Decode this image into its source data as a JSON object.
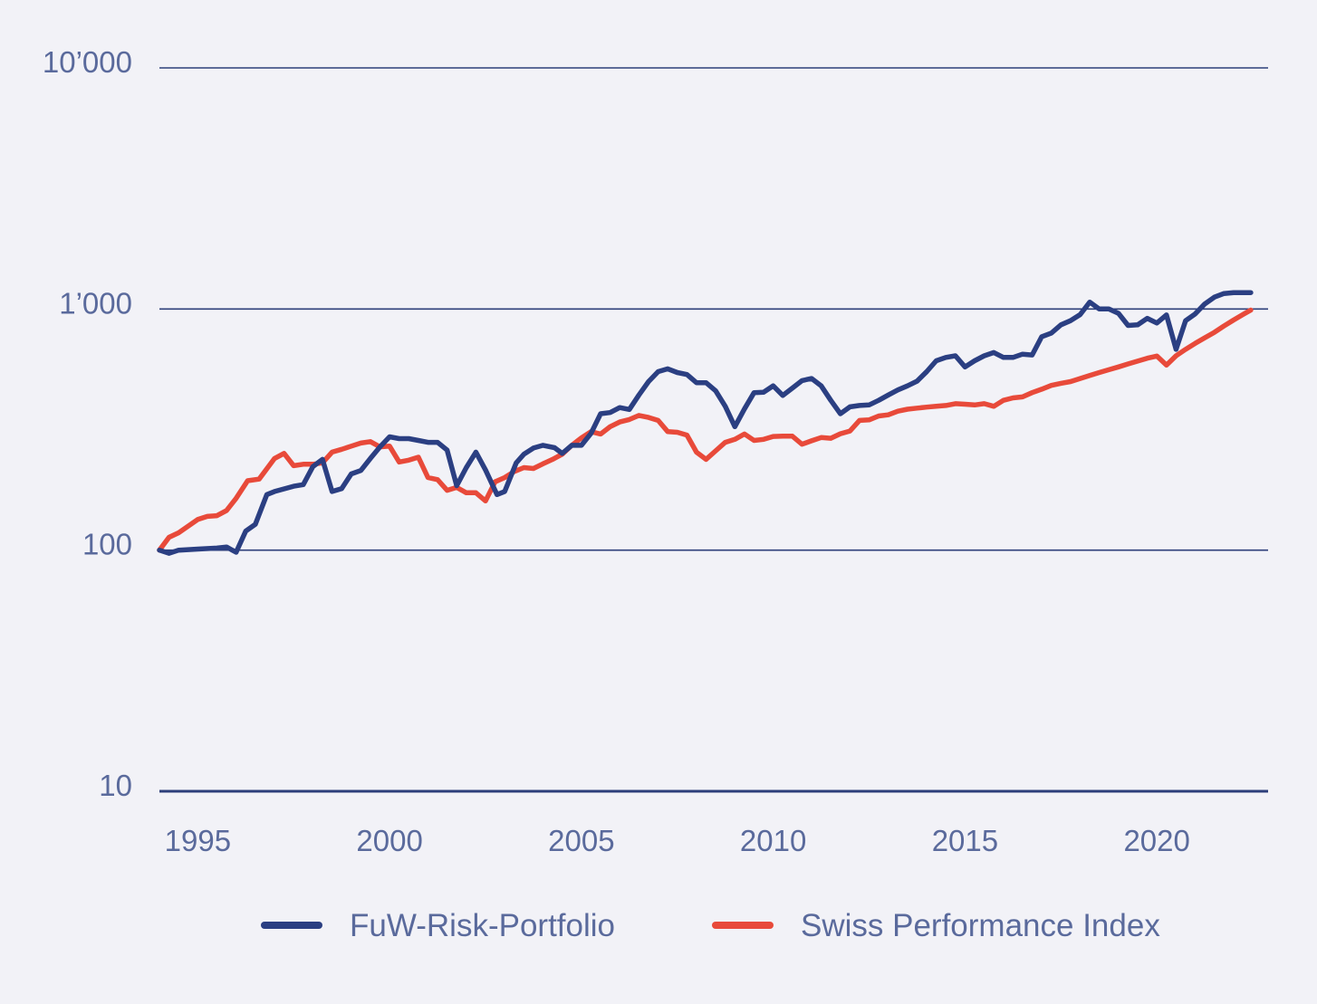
{
  "colors": {
    "background": "#f2f2f7",
    "grid": "#2d3f7a",
    "text": "#5a6a9c",
    "risk_portfolio": "#2b3f82",
    "spi": "#e84a3a"
  },
  "chart_data": {
    "type": "line",
    "title": "",
    "xlabel": "",
    "ylabel": "",
    "y_scale": "log",
    "xlim": [
      1994,
      2022.9
    ],
    "ylim": [
      10,
      10000
    ],
    "x_ticks": [
      1995,
      2000,
      2005,
      2010,
      2015,
      2020
    ],
    "x_tick_labels": [
      "1995",
      "2000",
      "2005",
      "2010",
      "2015",
      "2020"
    ],
    "y_ticks": [
      10,
      100,
      1000,
      10000
    ],
    "y_tick_labels": [
      "10",
      "100",
      "1’000",
      "10’000"
    ],
    "grid": "horizontal",
    "legend_position": "bottom",
    "legend": [
      "FuW-Risk-Portfolio",
      "Swiss Performance Index"
    ],
    "series": [
      {
        "name": "FuW-Risk-Portfolio",
        "color": "#2b3f82",
        "points": [
          [
            1994.0,
            100
          ],
          [
            1994.25,
            97
          ],
          [
            1994.5,
            100
          ],
          [
            1995.0,
            101
          ],
          [
            1995.5,
            102
          ],
          [
            1995.75,
            103
          ],
          [
            1996.0,
            98
          ],
          [
            1996.25,
            120
          ],
          [
            1996.5,
            128
          ],
          [
            1996.8,
            170
          ],
          [
            1997.0,
            175
          ],
          [
            1997.5,
            184
          ],
          [
            1997.75,
            187
          ],
          [
            1998.0,
            222
          ],
          [
            1998.25,
            238
          ],
          [
            1998.5,
            175
          ],
          [
            1998.75,
            180
          ],
          [
            1999.0,
            207
          ],
          [
            1999.25,
            214
          ],
          [
            1999.5,
            240
          ],
          [
            1999.75,
            268
          ],
          [
            2000.0,
            295
          ],
          [
            2000.25,
            290
          ],
          [
            2000.5,
            290
          ],
          [
            2000.75,
            285
          ],
          [
            2001.0,
            280
          ],
          [
            2001.25,
            280
          ],
          [
            2001.5,
            260
          ],
          [
            2001.75,
            185
          ],
          [
            2002.0,
            220
          ],
          [
            2002.25,
            255
          ],
          [
            2002.5,
            215
          ],
          [
            2002.8,
            170
          ],
          [
            2003.0,
            175
          ],
          [
            2003.3,
            230
          ],
          [
            2003.5,
            250
          ],
          [
            2003.75,
            265
          ],
          [
            2004.0,
            272
          ],
          [
            2004.3,
            266
          ],
          [
            2004.5,
            252
          ],
          [
            2004.75,
            272
          ],
          [
            2005.0,
            272
          ],
          [
            2005.25,
            305
          ],
          [
            2005.5,
            368
          ],
          [
            2005.75,
            372
          ],
          [
            2006.0,
            390
          ],
          [
            2006.25,
            383
          ],
          [
            2006.5,
            440
          ],
          [
            2006.75,
            500
          ],
          [
            2007.0,
            550
          ],
          [
            2007.25,
            565
          ],
          [
            2007.5,
            545
          ],
          [
            2007.75,
            535
          ],
          [
            2008.0,
            495
          ],
          [
            2008.25,
            495
          ],
          [
            2008.5,
            458
          ],
          [
            2008.75,
            395
          ],
          [
            2009.0,
            325
          ],
          [
            2009.25,
            385
          ],
          [
            2009.5,
            450
          ],
          [
            2009.75,
            452
          ],
          [
            2010.0,
            480
          ],
          [
            2010.25,
            438
          ],
          [
            2010.5,
            470
          ],
          [
            2010.75,
            505
          ],
          [
            2011.0,
            515
          ],
          [
            2011.25,
            480
          ],
          [
            2011.5,
            418
          ],
          [
            2011.75,
            368
          ],
          [
            2012.0,
            393
          ],
          [
            2012.25,
            398
          ],
          [
            2012.5,
            400
          ],
          [
            2012.75,
            418
          ],
          [
            2013.0,
            440
          ],
          [
            2013.25,
            462
          ],
          [
            2013.5,
            480
          ],
          [
            2013.75,
            502
          ],
          [
            2014.0,
            550
          ],
          [
            2014.25,
            610
          ],
          [
            2014.5,
            630
          ],
          [
            2014.75,
            640
          ],
          [
            2015.0,
            575
          ],
          [
            2015.25,
            610
          ],
          [
            2015.5,
            640
          ],
          [
            2015.75,
            660
          ],
          [
            2016.0,
            630
          ],
          [
            2016.25,
            630
          ],
          [
            2016.5,
            650
          ],
          [
            2016.75,
            645
          ],
          [
            2017.0,
            768
          ],
          [
            2017.25,
            795
          ],
          [
            2017.5,
            860
          ],
          [
            2017.75,
            895
          ],
          [
            2018.0,
            948
          ],
          [
            2018.25,
            1068
          ],
          [
            2018.5,
            1000
          ],
          [
            2018.75,
            1000
          ],
          [
            2019.0,
            960
          ],
          [
            2019.25,
            855
          ],
          [
            2019.5,
            860
          ],
          [
            2019.75,
            915
          ],
          [
            2020.0,
            875
          ],
          [
            2020.25,
            945
          ],
          [
            2020.5,
            680
          ],
          [
            2020.75,
            895
          ],
          [
            2021.0,
            955
          ],
          [
            2021.25,
            1050
          ],
          [
            2021.5,
            1120
          ],
          [
            2021.75,
            1160
          ],
          [
            2022.0,
            1170
          ],
          [
            2022.25,
            1170
          ],
          [
            2022.45,
            1170
          ]
        ]
      },
      {
        "name": "Swiss Performance Index",
        "color": "#e84a3a",
        "points": [
          [
            1994.0,
            100
          ],
          [
            1994.25,
            113
          ],
          [
            1994.5,
            118
          ],
          [
            1995.0,
            134
          ],
          [
            1995.25,
            138
          ],
          [
            1995.5,
            139
          ],
          [
            1995.75,
            146
          ],
          [
            1996.0,
            164
          ],
          [
            1996.3,
            194
          ],
          [
            1996.6,
            197
          ],
          [
            1997.0,
            240
          ],
          [
            1997.25,
            252
          ],
          [
            1997.5,
            224
          ],
          [
            1997.75,
            227
          ],
          [
            1998.0,
            227
          ],
          [
            1998.25,
            230
          ],
          [
            1998.5,
            255
          ],
          [
            1998.75,
            262
          ],
          [
            1999.0,
            270
          ],
          [
            1999.25,
            278
          ],
          [
            1999.5,
            282
          ],
          [
            1999.75,
            268
          ],
          [
            2000.0,
            270
          ],
          [
            2000.25,
            232
          ],
          [
            2000.5,
            236
          ],
          [
            2000.75,
            243
          ],
          [
            2001.0,
            200
          ],
          [
            2001.25,
            196
          ],
          [
            2001.5,
            177
          ],
          [
            2001.75,
            182
          ],
          [
            2002.0,
            173
          ],
          [
            2002.25,
            173
          ],
          [
            2002.5,
            160
          ],
          [
            2002.75,
            192
          ],
          [
            2003.0,
            200
          ],
          [
            2003.25,
            212
          ],
          [
            2003.5,
            220
          ],
          [
            2003.75,
            218
          ],
          [
            2004.0,
            228
          ],
          [
            2004.25,
            238
          ],
          [
            2004.5,
            250
          ],
          [
            2004.75,
            272
          ],
          [
            2005.0,
            292
          ],
          [
            2005.25,
            310
          ],
          [
            2005.5,
            303
          ],
          [
            2005.75,
            325
          ],
          [
            2006.0,
            340
          ],
          [
            2006.25,
            348
          ],
          [
            2006.5,
            362
          ],
          [
            2006.75,
            355
          ],
          [
            2007.0,
            345
          ],
          [
            2007.25,
            310
          ],
          [
            2007.5,
            308
          ],
          [
            2007.75,
            300
          ],
          [
            2008.0,
            255
          ],
          [
            2008.25,
            238
          ],
          [
            2008.5,
            258
          ],
          [
            2008.75,
            280
          ],
          [
            2009.0,
            288
          ],
          [
            2009.25,
            303
          ],
          [
            2009.5,
            285
          ],
          [
            2009.75,
            288
          ],
          [
            2010.0,
            296
          ],
          [
            2010.25,
            297
          ],
          [
            2010.5,
            297
          ],
          [
            2010.75,
            275
          ],
          [
            2011.0,
            284
          ],
          [
            2011.25,
            293
          ],
          [
            2011.5,
            291
          ],
          [
            2011.75,
            304
          ],
          [
            2012.0,
            312
          ],
          [
            2012.25,
            345
          ],
          [
            2012.5,
            347
          ],
          [
            2012.75,
            360
          ],
          [
            2013.0,
            364
          ],
          [
            2013.25,
            377
          ],
          [
            2013.5,
            384
          ],
          [
            2013.75,
            388
          ],
          [
            2014.0,
            392
          ],
          [
            2014.25,
            395
          ],
          [
            2014.5,
            398
          ],
          [
            2014.75,
            405
          ],
          [
            2015.0,
            403
          ],
          [
            2015.25,
            400
          ],
          [
            2015.5,
            405
          ],
          [
            2015.75,
            395
          ],
          [
            2016.0,
            418
          ],
          [
            2016.25,
            428
          ],
          [
            2016.5,
            432
          ],
          [
            2016.75,
            450
          ],
          [
            2017.0,
            465
          ],
          [
            2017.25,
            482
          ],
          [
            2017.5,
            492
          ],
          [
            2017.75,
            500
          ],
          [
            2018.0,
            515
          ],
          [
            2018.25,
            530
          ],
          [
            2018.5,
            545
          ],
          [
            2018.75,
            560
          ],
          [
            2019.0,
            575
          ],
          [
            2019.25,
            592
          ],
          [
            2019.5,
            608
          ],
          [
            2019.75,
            625
          ],
          [
            2020.0,
            638
          ],
          [
            2020.25,
            585
          ],
          [
            2020.5,
            640
          ],
          [
            2020.75,
            680
          ],
          [
            2021.0,
            720
          ],
          [
            2021.25,
            760
          ],
          [
            2021.5,
            800
          ],
          [
            2021.75,
            850
          ],
          [
            2022.0,
            900
          ],
          [
            2022.25,
            950
          ],
          [
            2022.45,
            990
          ]
        ]
      }
    ]
  }
}
